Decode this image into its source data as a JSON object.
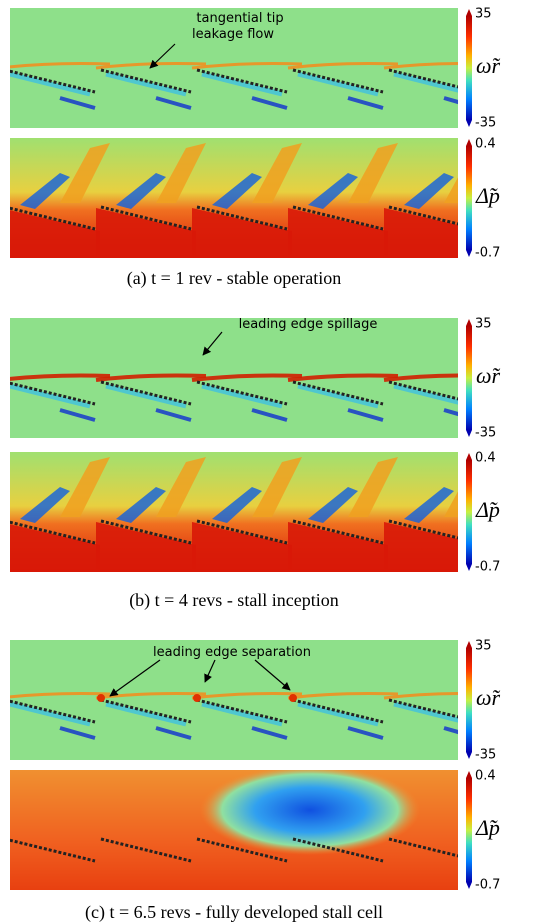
{
  "groups": [
    {
      "caption": "(a) t = 1 rev - stable operation",
      "annotation": [
        "tangential tip",
        "leakage flow"
      ],
      "panels": [
        {
          "symbol": "ω̃r",
          "max": 35,
          "min": -35
        },
        {
          "symbol": "Δ̃p",
          "max": 0.4,
          "min": -0.7
        }
      ]
    },
    {
      "caption": "(b) t = 4 revs - stall inception",
      "annotation": [
        "leading edge spillage"
      ],
      "panels": [
        {
          "symbol": "ω̃r",
          "max": 35,
          "min": -35
        },
        {
          "symbol": "Δ̃p",
          "max": 0.4,
          "min": -0.7
        }
      ]
    },
    {
      "caption": "(c) t = 6.5 revs - fully developed stall cell",
      "annotation": [
        "leading edge separation"
      ],
      "panels": [
        {
          "symbol": "ω̃r",
          "max": 35,
          "min": -35
        },
        {
          "symbol": "Δ̃p",
          "max": 0.4,
          "min": -0.7
        }
      ]
    }
  ]
}
